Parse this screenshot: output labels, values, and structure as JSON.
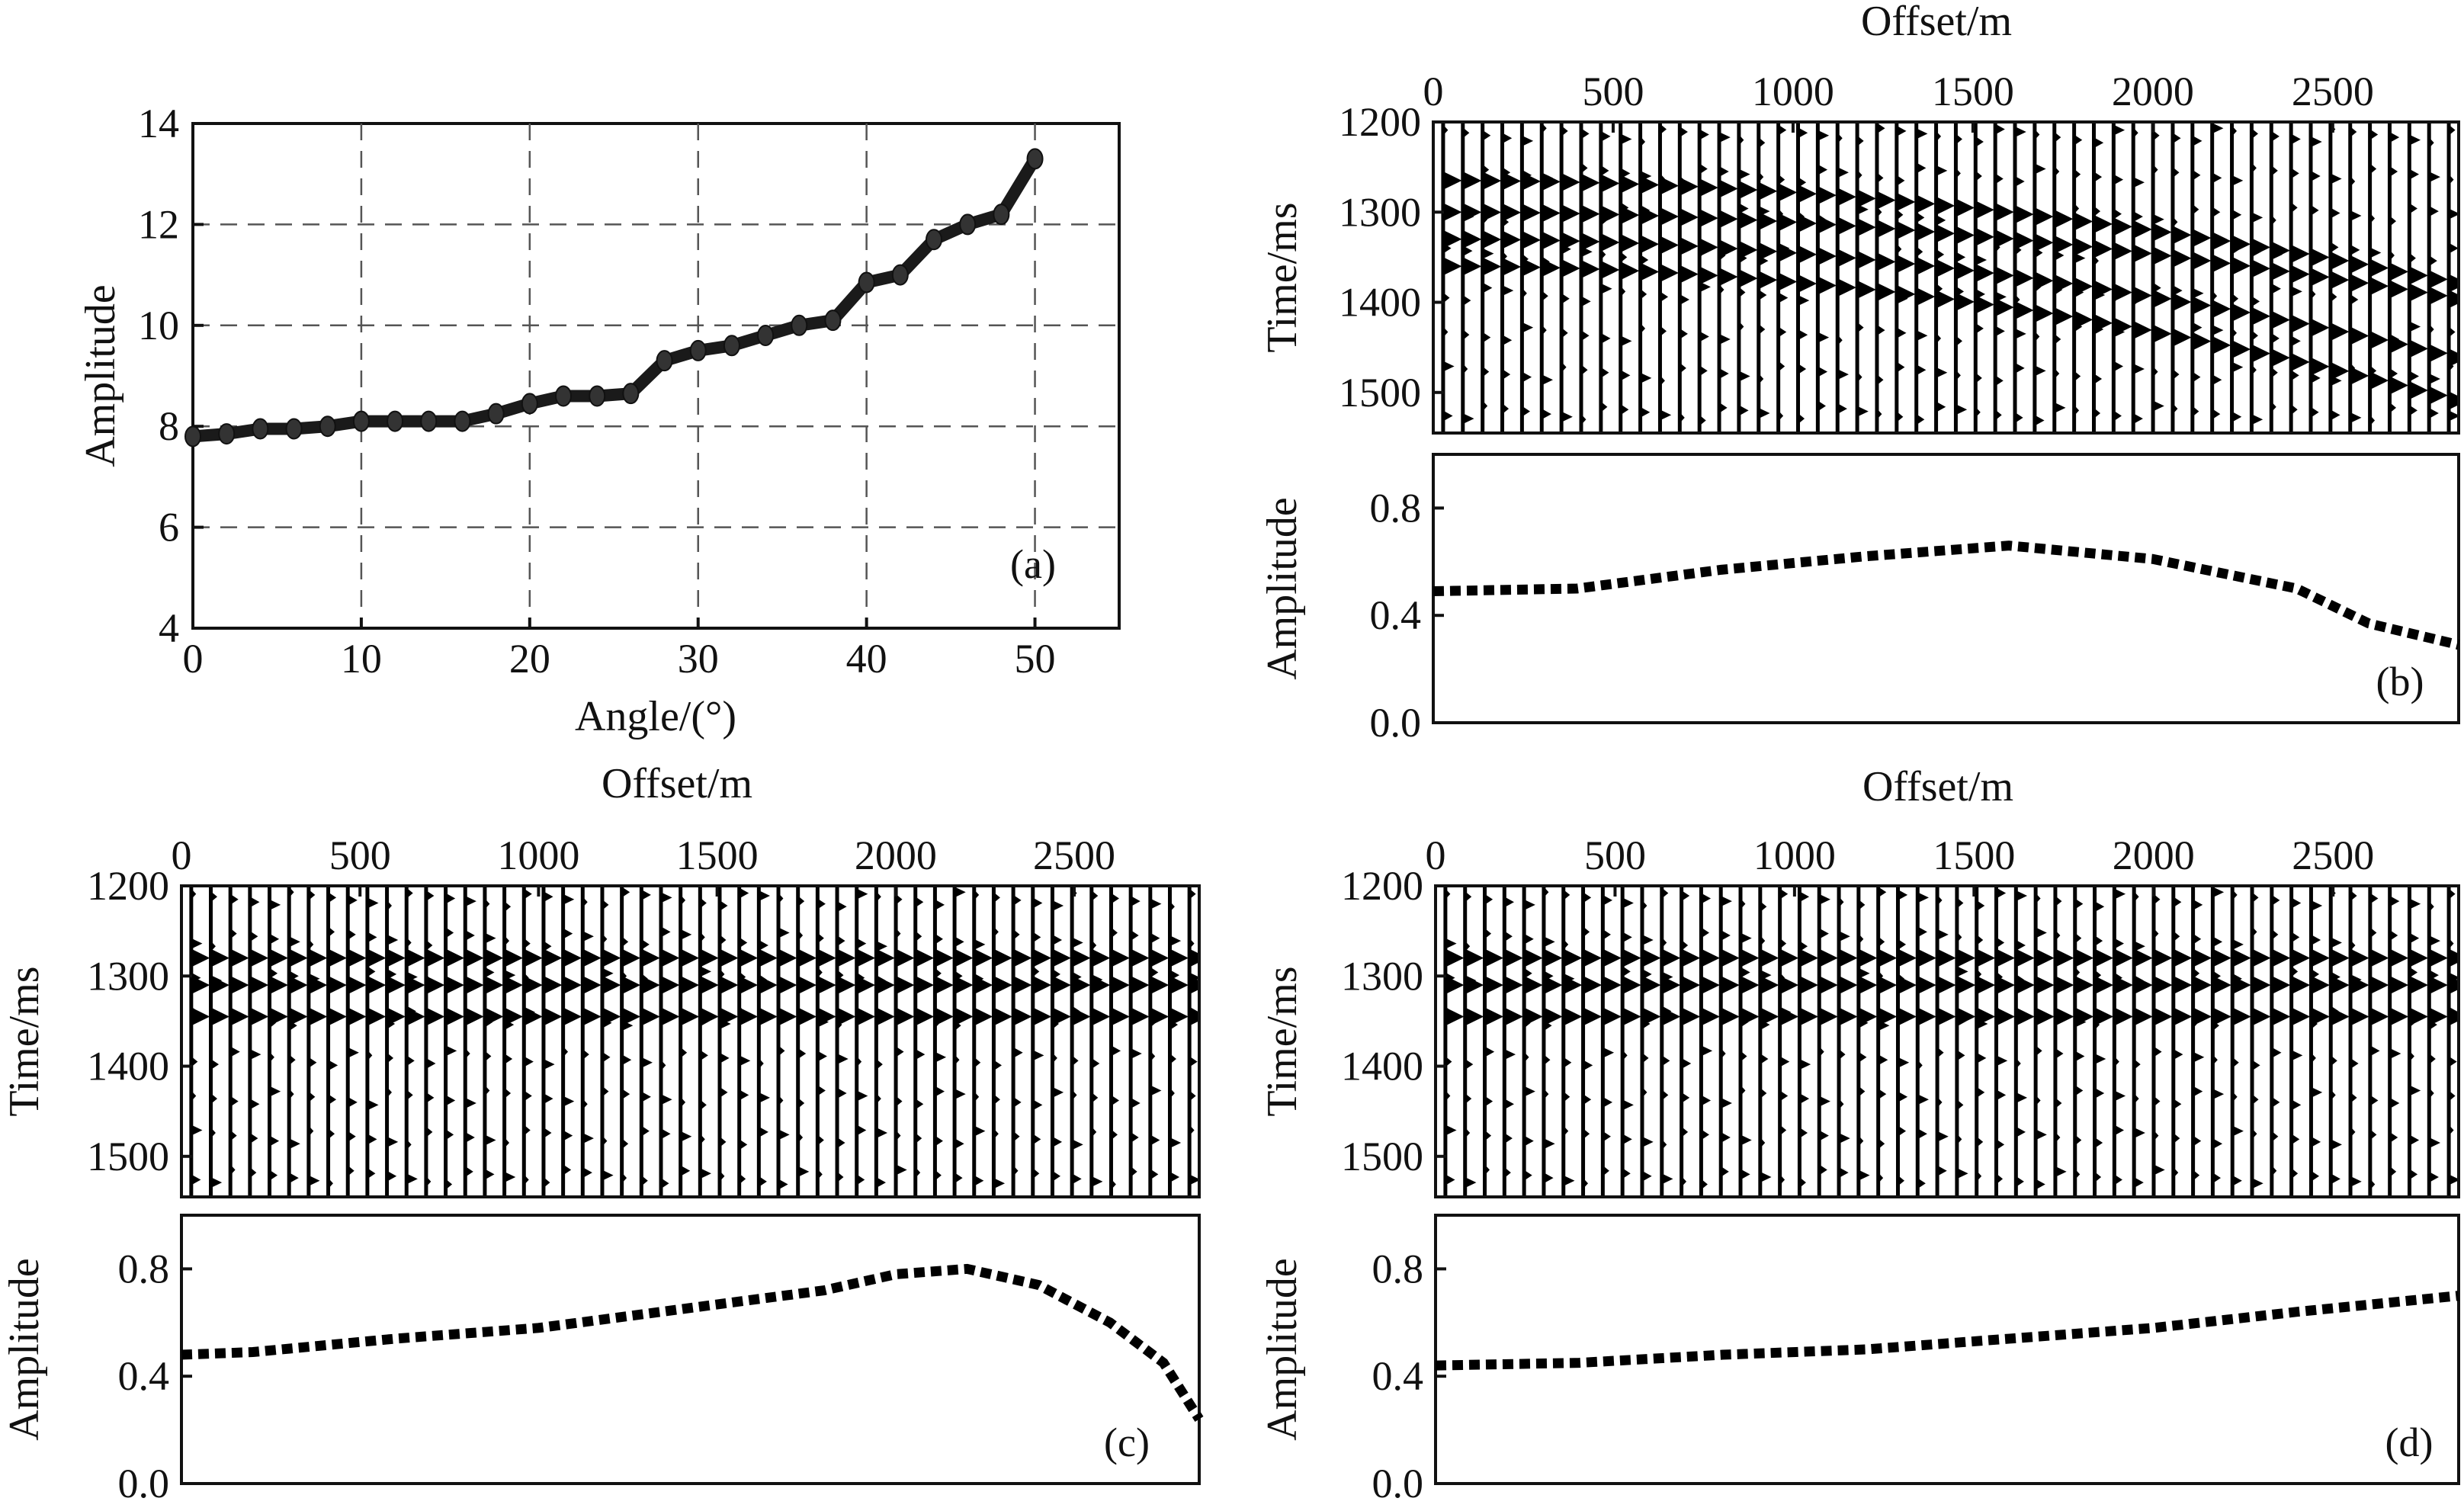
{
  "chart_data": [
    {
      "id": "a",
      "type": "line",
      "panel_label": "(a)",
      "xlabel": "Angle/(°)",
      "ylabel": "Amplitude",
      "xlim": [
        0,
        55
      ],
      "ylim": [
        4,
        14
      ],
      "xticks": [
        0,
        10,
        20,
        30,
        40,
        50
      ],
      "yticks": [
        4,
        6,
        8,
        10,
        12,
        14
      ],
      "grid": true,
      "series": [
        {
          "x": [
            0,
            2,
            4,
            6,
            8,
            10,
            12,
            14,
            16,
            18,
            20,
            22,
            24,
            26,
            28,
            30,
            32,
            34,
            36,
            38,
            40,
            42,
            44,
            46,
            48,
            50
          ],
          "values": [
            7.8,
            7.85,
            7.95,
            7.95,
            8.0,
            8.1,
            8.1,
            8.1,
            8.1,
            8.25,
            8.45,
            8.6,
            8.6,
            8.65,
            9.3,
            9.5,
            9.6,
            9.8,
            10.0,
            10.1,
            10.85,
            11.0,
            11.7,
            12.0,
            12.2,
            13.3
          ]
        }
      ]
    },
    {
      "id": "b",
      "panel_label": "(b)",
      "gather": {
        "type": "heatmap",
        "xlabel": "Offset/m",
        "ylabel": "Time/ms",
        "xlim": [
          0,
          2850
        ],
        "ylim": [
          1200,
          1545
        ],
        "xticks": [
          0,
          500,
          1000,
          1500,
          2000,
          2500
        ],
        "yticks": [
          1200,
          1300,
          1400,
          1500
        ],
        "events": [
          {
            "t0": 1265,
            "curvature": 6.5
          },
          {
            "t0": 1300,
            "curvature": 5.5
          },
          {
            "t0": 1330,
            "curvature": 7.5
          },
          {
            "t0": 1360,
            "curvature": 8.5
          }
        ]
      },
      "amplitude": {
        "type": "line",
        "ylabel": "Amplitude",
        "ylim": [
          0.0,
          1.0
        ],
        "yticks": [
          0.0,
          0.4,
          0.8
        ],
        "x": [
          0,
          400,
          800,
          1200,
          1600,
          2000,
          2400,
          2600,
          2850
        ],
        "values": [
          0.49,
          0.5,
          0.57,
          0.62,
          0.66,
          0.61,
          0.5,
          0.37,
          0.29
        ]
      }
    },
    {
      "id": "c",
      "panel_label": "(c)",
      "gather": {
        "type": "heatmap",
        "xlabel": "Offset/m",
        "ylabel": "Time/ms",
        "xlim": [
          0,
          2850
        ],
        "ylim": [
          1200,
          1545
        ],
        "xticks": [
          0,
          500,
          1000,
          1500,
          2000,
          2500
        ],
        "yticks": [
          1200,
          1300,
          1400,
          1500
        ],
        "events": [
          {
            "t0": 1280,
            "curvature": 0.0
          },
          {
            "t0": 1310,
            "curvature": 0.0
          },
          {
            "t0": 1345,
            "curvature": 0.0
          }
        ]
      },
      "amplitude": {
        "type": "line",
        "ylabel": "Amplitude",
        "ylim": [
          0.0,
          1.0
        ],
        "yticks": [
          0.0,
          0.4,
          0.8
        ],
        "x": [
          0,
          200,
          600,
          1000,
          1400,
          1800,
          2000,
          2200,
          2400,
          2600,
          2750,
          2850
        ],
        "values": [
          0.48,
          0.49,
          0.54,
          0.58,
          0.65,
          0.72,
          0.78,
          0.8,
          0.74,
          0.6,
          0.45,
          0.24
        ]
      }
    },
    {
      "id": "d",
      "panel_label": "(d)",
      "gather": {
        "type": "heatmap",
        "xlabel": "Offset/m",
        "ylabel": "Time/ms",
        "xlim": [
          0,
          2850
        ],
        "ylim": [
          1200,
          1545
        ],
        "xticks": [
          0,
          500,
          1000,
          1500,
          2000,
          2500
        ],
        "yticks": [
          1200,
          1300,
          1400,
          1500
        ],
        "events": [
          {
            "t0": 1280,
            "curvature": 0.0
          },
          {
            "t0": 1310,
            "curvature": 0.0
          },
          {
            "t0": 1345,
            "curvature": 0.0
          }
        ]
      },
      "amplitude": {
        "type": "line",
        "ylabel": "Amplitude",
        "ylim": [
          0.0,
          1.0
        ],
        "yticks": [
          0.0,
          0.4,
          0.8
        ],
        "x": [
          0,
          400,
          800,
          1200,
          1600,
          2000,
          2400,
          2850
        ],
        "values": [
          0.44,
          0.45,
          0.48,
          0.5,
          0.54,
          0.58,
          0.64,
          0.7
        ]
      }
    }
  ]
}
